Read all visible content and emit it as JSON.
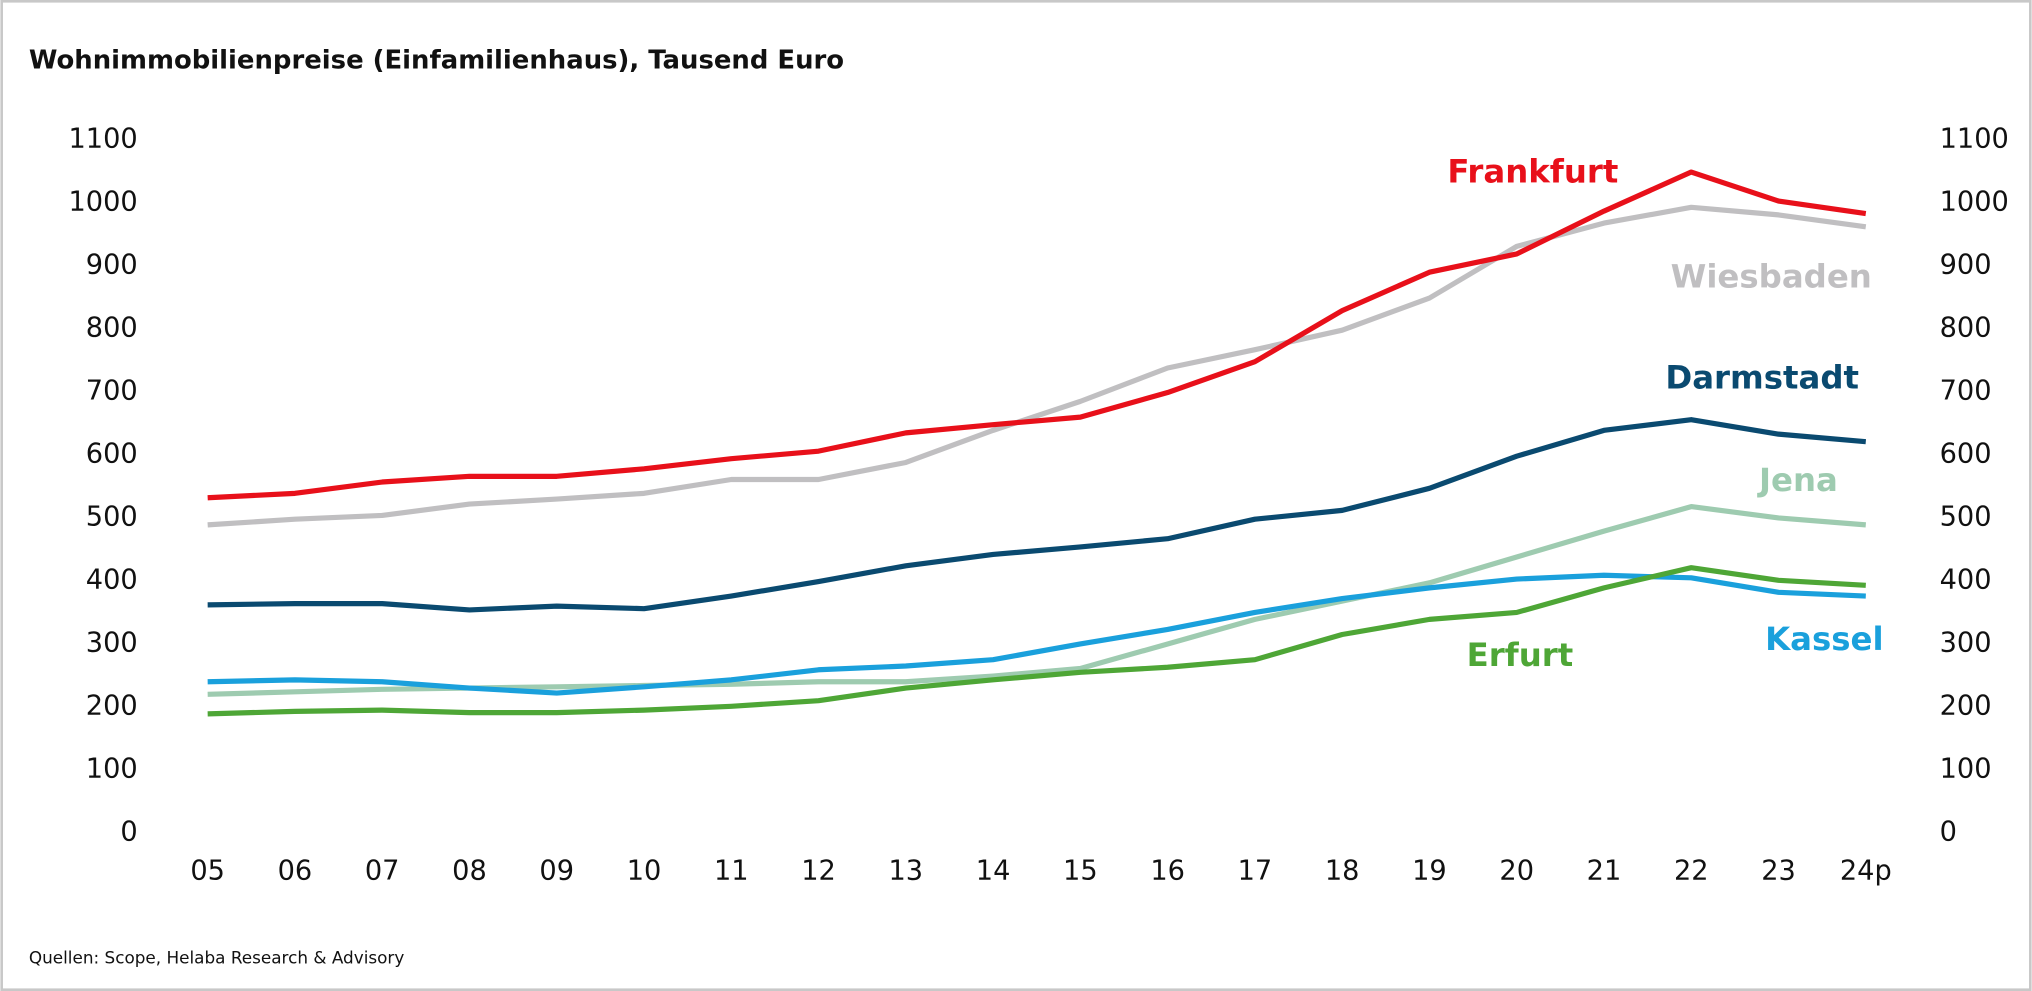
{
  "chart_data": {
    "type": "line",
    "title": "Wohnimmobilienpreise (Einfamilienhaus), Tausend Euro",
    "source": "Quellen: Scope, Helaba Research & Advisory",
    "categories": [
      "05",
      "06",
      "07",
      "08",
      "09",
      "10",
      "11",
      "12",
      "13",
      "14",
      "15",
      "16",
      "17",
      "18",
      "19",
      "20",
      "21",
      "22",
      "23",
      "24p"
    ],
    "ylim": [
      0,
      1100
    ],
    "yticks": [
      0,
      100,
      200,
      300,
      400,
      500,
      600,
      700,
      800,
      900,
      1000,
      1100
    ],
    "y2lim": [
      0,
      1100
    ],
    "y2ticks": [
      0,
      100,
      200,
      300,
      400,
      500,
      600,
      700,
      800,
      900,
      1000,
      1100
    ],
    "grid": false,
    "series": [
      {
        "name": "Frankfurt",
        "color": "#e8101a",
        "values": [
          532,
          539,
          557,
          566,
          566,
          578,
          594,
          606,
          635,
          648,
          660,
          699,
          748,
          829,
          890,
          919,
          987,
          1049,
          1003,
          983
        ]
      },
      {
        "name": "Wiesbaden",
        "color": "#c0bfc1",
        "values": [
          489,
          498,
          504,
          522,
          530,
          539,
          561,
          561,
          588,
          639,
          685,
          738,
          767,
          798,
          849,
          931,
          968,
          993,
          981,
          962
        ]
      },
      {
        "name": "Darmstadt",
        "color": "#0a4a70",
        "values": [
          362,
          364,
          364,
          354,
          360,
          356,
          376,
          399,
          424,
          442,
          454,
          467,
          498,
          512,
          547,
          598,
          639,
          656,
          633,
          621
        ]
      },
      {
        "name": "Jena",
        "color": "#9ecbb0",
        "values": [
          220,
          224,
          228,
          230,
          232,
          234,
          236,
          240,
          240,
          249,
          261,
          300,
          339,
          368,
          397,
          438,
          479,
          518,
          500,
          489
        ]
      },
      {
        "name": "Kassel",
        "color": "#1aa0dc",
        "values": [
          240,
          243,
          240,
          230,
          222,
          232,
          243,
          259,
          265,
          275,
          300,
          323,
          350,
          372,
          389,
          403,
          409,
          405,
          382,
          376
        ]
      },
      {
        "name": "Erfurt",
        "color": "#4ea636",
        "values": [
          189,
          193,
          195,
          191,
          191,
          195,
          201,
          210,
          230,
          243,
          255,
          263,
          275,
          315,
          339,
          350,
          389,
          421,
          401,
          393
        ]
      }
    ]
  }
}
